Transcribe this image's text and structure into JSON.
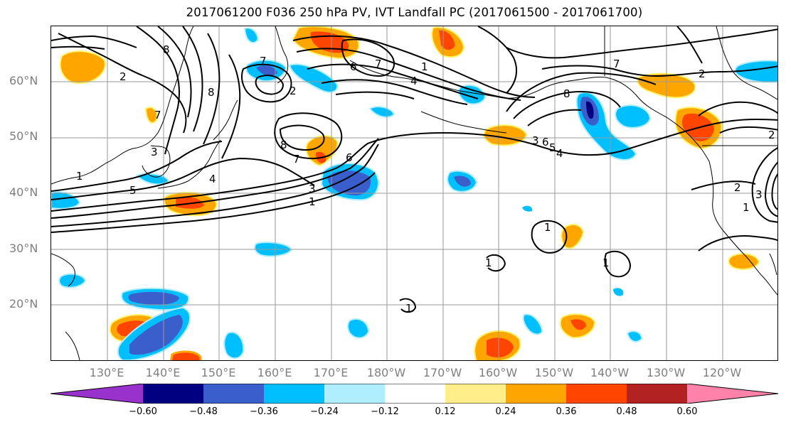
{
  "title": "2017061200 F036 250 hPa PV, IVT Landfall PC (2017061500 - 2017061700)",
  "lat_labels": [
    "60°N",
    "50°N",
    "40°N",
    "30°N",
    "20°N"
  ],
  "lon_labels": [
    "130°E",
    "140°E",
    "150°E",
    "160°E",
    "170°E",
    "180°W",
    "170°W",
    "160°W",
    "150°W",
    "140°W",
    "130°W",
    "120°W"
  ],
  "contour_labels": [
    "8",
    "7",
    "6",
    "1",
    "4",
    "7",
    "2",
    "8",
    "7",
    "1",
    "2",
    "3",
    "4",
    "5",
    "8",
    "7",
    "6",
    "3",
    "1",
    "1",
    "1",
    "1",
    "1",
    "2",
    "7",
    "2",
    "3",
    "8",
    "6",
    "5",
    "4",
    "2",
    "3",
    "1"
  ],
  "colorbar": {
    "ticks": [
      "−0.60",
      "−0.48",
      "−0.36",
      "−0.24",
      "−0.12",
      "0.12",
      "0.24",
      "0.36",
      "0.48",
      "0.60"
    ],
    "colors": [
      "#9932cc",
      "#000080",
      "#3a5fcd",
      "#00bfff",
      "#afeeff",
      "#ffffff",
      "#ffff00",
      "#ffa500",
      "#ff4500",
      "#b22222",
      "#ff82ab"
    ]
  }
}
